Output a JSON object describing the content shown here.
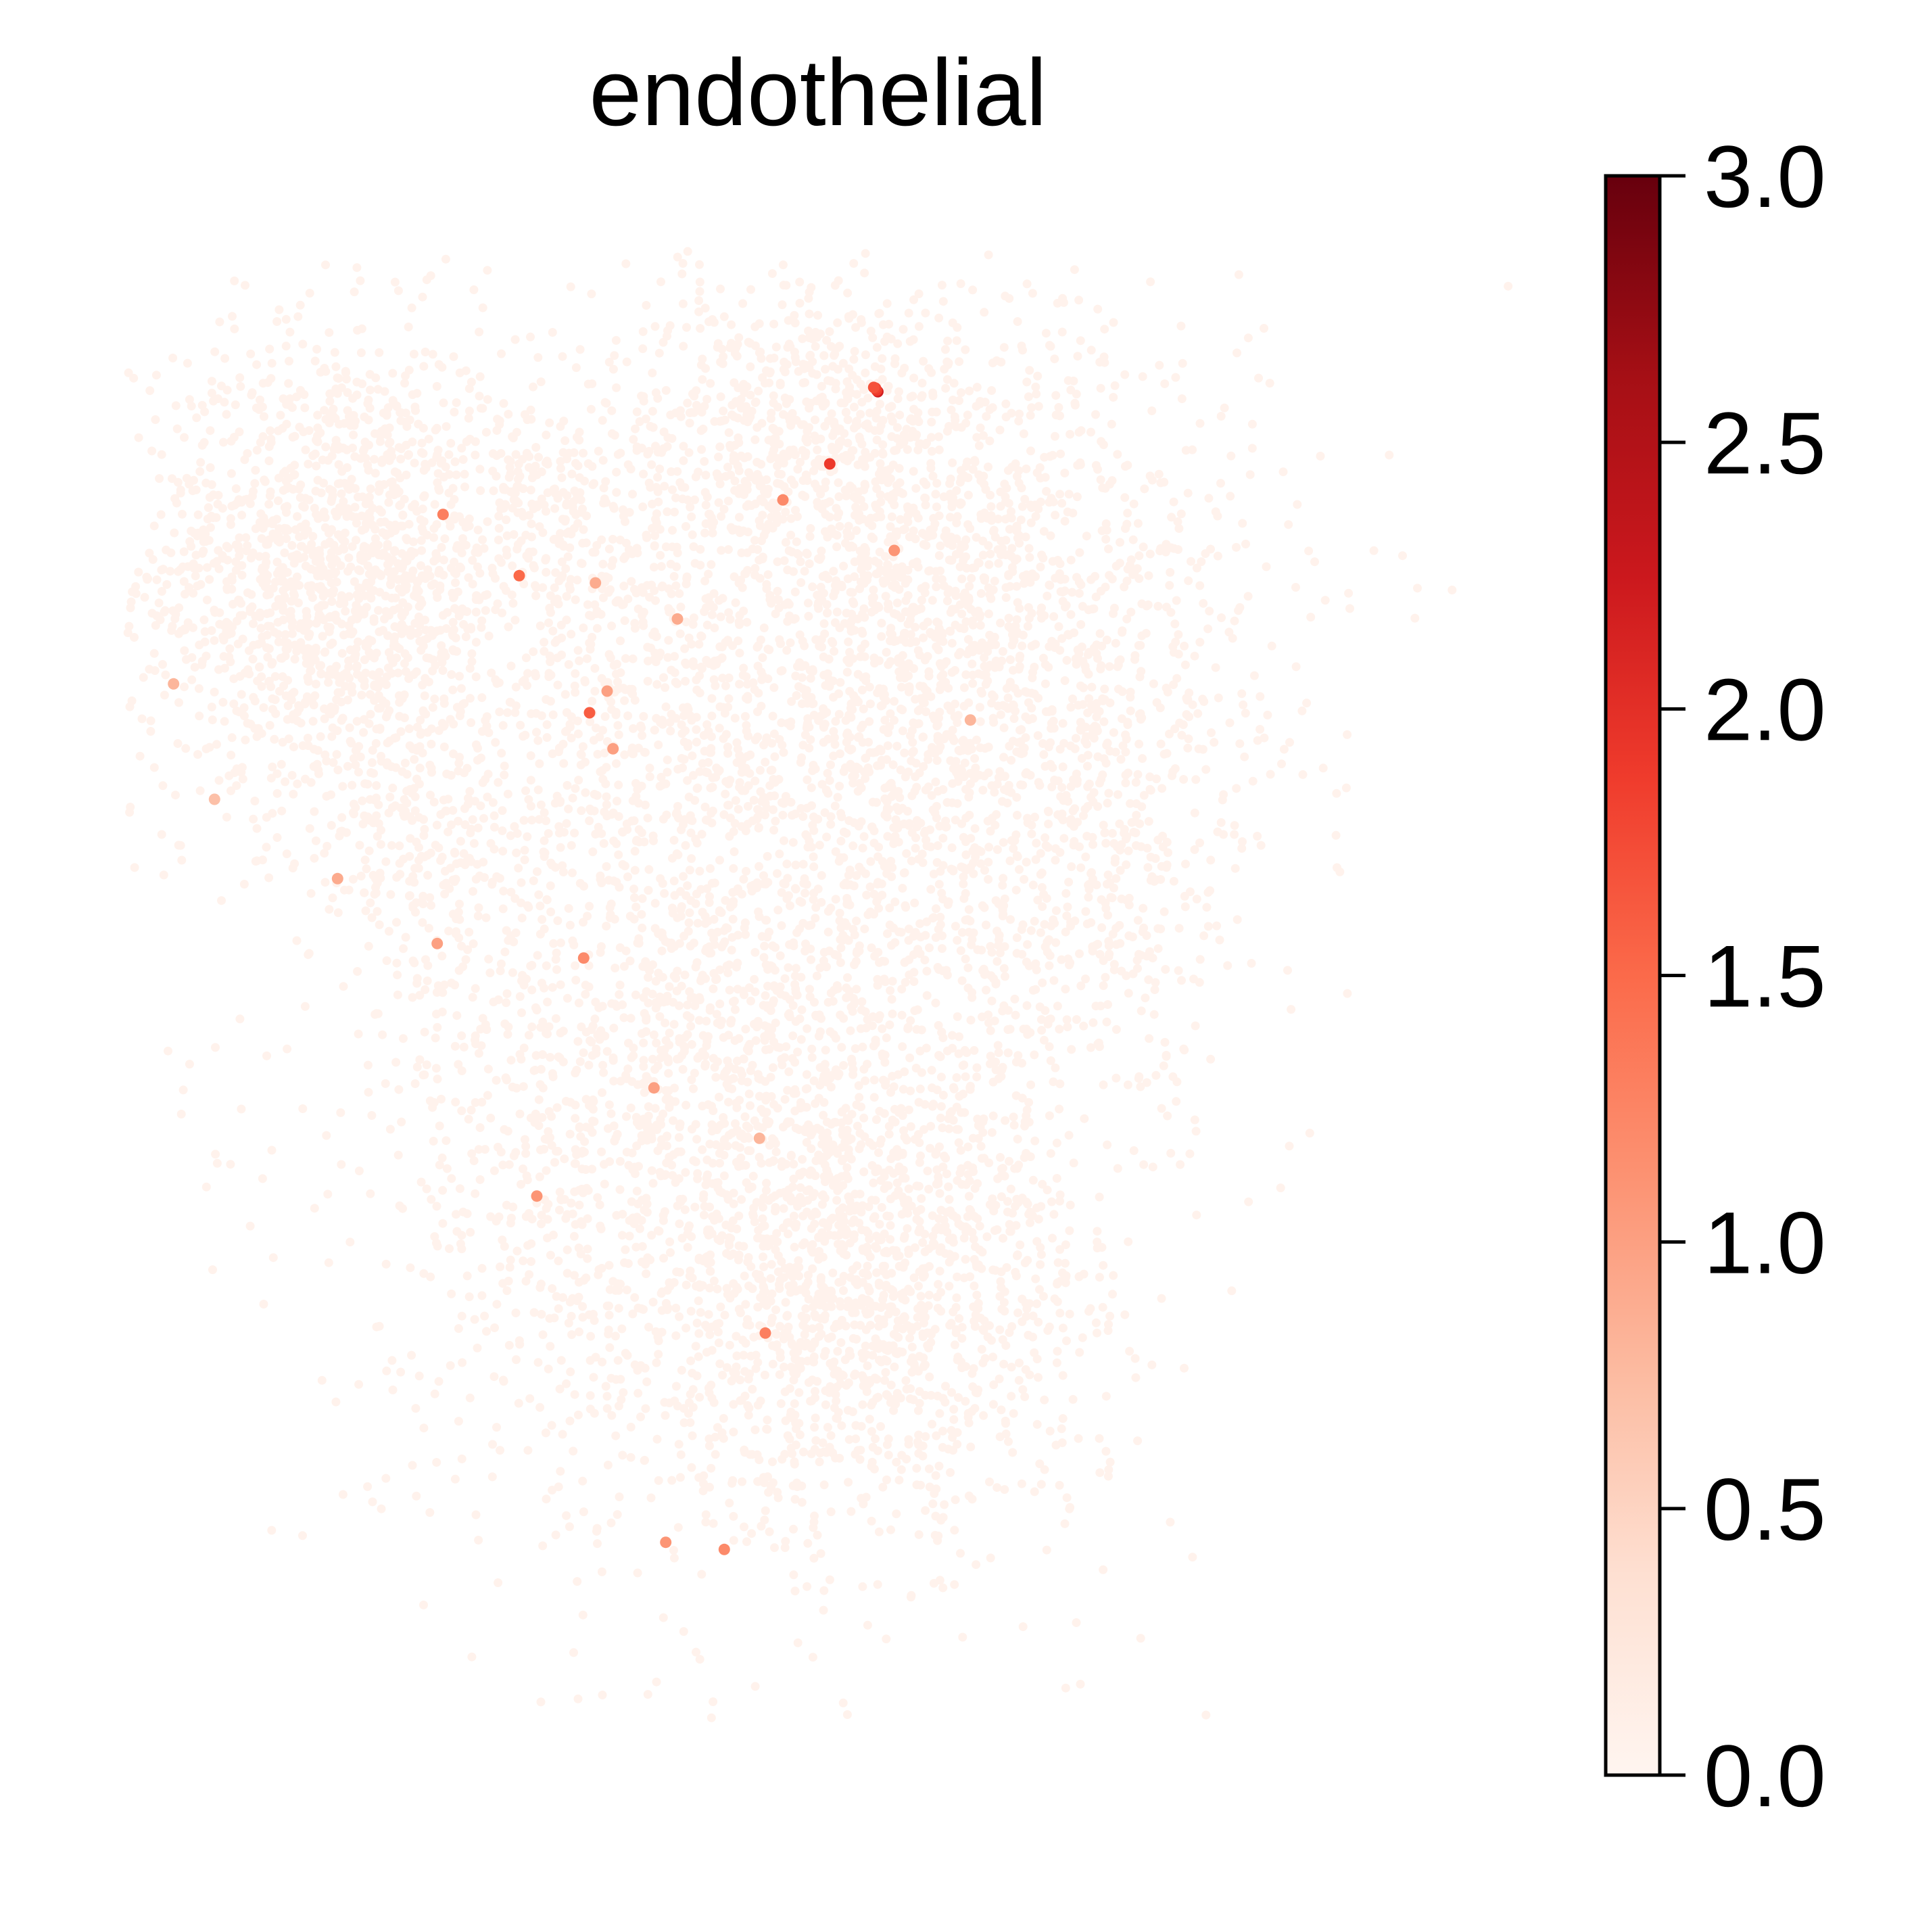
{
  "chart_data": {
    "type": "scatter",
    "title": "endothelial",
    "xlabel": "",
    "ylabel": "",
    "axes_visible": false,
    "grid": false,
    "colormap": "Reds",
    "colormap_stops": [
      "#fff5f0",
      "#fee0d2",
      "#fcbba1",
      "#fc9272",
      "#fb6a4a",
      "#ef3b2c",
      "#cb181d",
      "#a50f15",
      "#67000d"
    ],
    "colorbar": {
      "range": [
        0.0,
        3.0
      ],
      "ticks": [
        0.0,
        0.5,
        1.0,
        1.5,
        2.0,
        2.5,
        3.0
      ],
      "tick_labels": [
        "0.0",
        "0.5",
        "1.0",
        "1.5",
        "2.0",
        "2.5",
        "3.0"
      ],
      "placement": "right"
    },
    "base_value": 0.05,
    "highlighted_points": [
      {
        "x": 1.02,
        "y": 3.85,
        "value": 2.2
      },
      {
        "x": 1.0,
        "y": 3.87,
        "value": 1.9
      },
      {
        "x": 0.98,
        "y": 3.9,
        "value": 1.8
      },
      {
        "x": 0.95,
        "y": 3.91,
        "value": 1.7
      },
      {
        "x": 0.2,
        "y": 2.85,
        "value": 1.9
      },
      {
        "x": -0.6,
        "y": 2.35,
        "value": 1.2
      },
      {
        "x": 1.3,
        "y": 1.65,
        "value": 1.1
      },
      {
        "x": -6.4,
        "y": 2.15,
        "value": 1.3
      },
      {
        "x": -5.1,
        "y": 1.3,
        "value": 1.5
      },
      {
        "x": -3.9,
        "y": -0.6,
        "value": 1.6
      },
      {
        "x": -3.6,
        "y": -0.3,
        "value": 1.0
      },
      {
        "x": -3.5,
        "y": -1.1,
        "value": 1.0
      },
      {
        "x": -4.0,
        "y": -4.0,
        "value": 1.2
      },
      {
        "x": -4.8,
        "y": -7.3,
        "value": 1.1
      },
      {
        "x": -6.5,
        "y": -3.8,
        "value": 1.0
      },
      {
        "x": -2.8,
        "y": -5.8,
        "value": 1.0
      },
      {
        "x": -0.9,
        "y": -9.2,
        "value": 1.3
      },
      {
        "x": -2.6,
        "y": -12.1,
        "value": 1.1
      },
      {
        "x": -1.6,
        "y": -12.2,
        "value": 1.2
      },
      {
        "x": -2.4,
        "y": 0.7,
        "value": 0.9
      },
      {
        "x": -11.0,
        "y": -0.2,
        "value": 0.8
      },
      {
        "x": -10.3,
        "y": -1.8,
        "value": 0.7
      },
      {
        "x": -8.2,
        "y": -2.9,
        "value": 0.9
      },
      {
        "x": 2.6,
        "y": -0.7,
        "value": 0.8
      },
      {
        "x": -3.8,
        "y": 1.2,
        "value": 0.9
      },
      {
        "x": -1.0,
        "y": -6.5,
        "value": 0.8
      }
    ]
  }
}
